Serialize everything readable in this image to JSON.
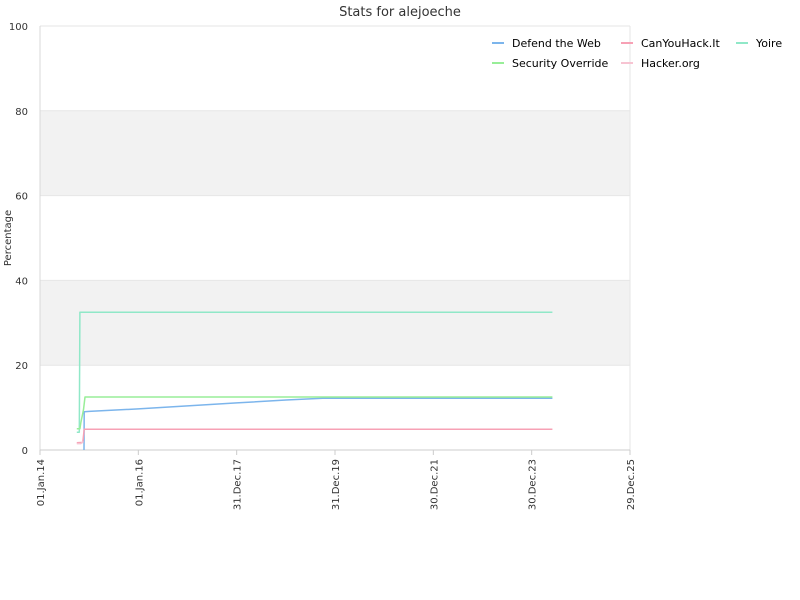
{
  "chart_data": {
    "type": "line",
    "title": "Stats for alejoeche",
    "xlabel": "",
    "ylabel": "Percentage",
    "ylim": [
      0,
      100
    ],
    "yticks": [
      0,
      20,
      40,
      60,
      80,
      100
    ],
    "xlim": [
      "2014-01-01",
      "2025-12-29"
    ],
    "xticks": [
      {
        "label": "01.Jan.14",
        "date": "2014-01-01"
      },
      {
        "label": "01.Jan.16",
        "date": "2016-01-01"
      },
      {
        "label": "31.Dec.17",
        "date": "2017-12-31"
      },
      {
        "label": "31.Dec.19",
        "date": "2019-12-31"
      },
      {
        "label": "30.Dec.21",
        "date": "2021-12-30"
      },
      {
        "label": "30.Dec.23",
        "date": "2023-12-30"
      },
      {
        "label": "29.Dec.25",
        "date": "2025-12-29"
      }
    ],
    "grid": true,
    "alternating_bands": true,
    "legend_position": "top-right",
    "series": [
      {
        "name": "Defend the Web",
        "color": "#7cb5ec",
        "points": [
          [
            "2014-11-24",
            0
          ],
          [
            "2014-11-25",
            9
          ],
          [
            "2015-01-01",
            9.1
          ],
          [
            "2016-01-01",
            9.7
          ],
          [
            "2017-01-01",
            10.4
          ],
          [
            "2018-01-01",
            11.1
          ],
          [
            "2019-01-01",
            11.8
          ],
          [
            "2019-10-01",
            12.2
          ],
          [
            "2024-06-01",
            12.2
          ]
        ]
      },
      {
        "name": "CanYouHack.It",
        "color": "#f7a1b5",
        "points": [
          [
            "2014-10-01",
            1.7
          ],
          [
            "2014-11-15",
            1.8
          ],
          [
            "2014-11-25",
            4.9
          ],
          [
            "2024-06-01",
            4.9
          ]
        ]
      },
      {
        "name": "Yoire",
        "color": "#90e8c8",
        "points": [
          [
            "2014-10-01",
            4.2
          ],
          [
            "2014-10-20",
            4.2
          ],
          [
            "2014-10-24",
            32.5
          ],
          [
            "2024-06-01",
            32.5
          ]
        ]
      },
      {
        "name": "Security Override",
        "color": "#98ee98",
        "points": [
          [
            "2014-10-01",
            5.0
          ],
          [
            "2014-10-24",
            5.0
          ],
          [
            "2014-11-01",
            6.5
          ],
          [
            "2014-11-20",
            9.5
          ],
          [
            "2014-12-01",
            12.5
          ],
          [
            "2024-06-01",
            12.5
          ]
        ]
      },
      {
        "name": "Hacker.org",
        "color": "#f7c4d2",
        "points": [
          [
            "2014-10-01",
            1.5
          ],
          [
            "2014-11-01",
            1.5
          ],
          [
            "2014-11-20",
            2.0
          ]
        ]
      }
    ]
  }
}
